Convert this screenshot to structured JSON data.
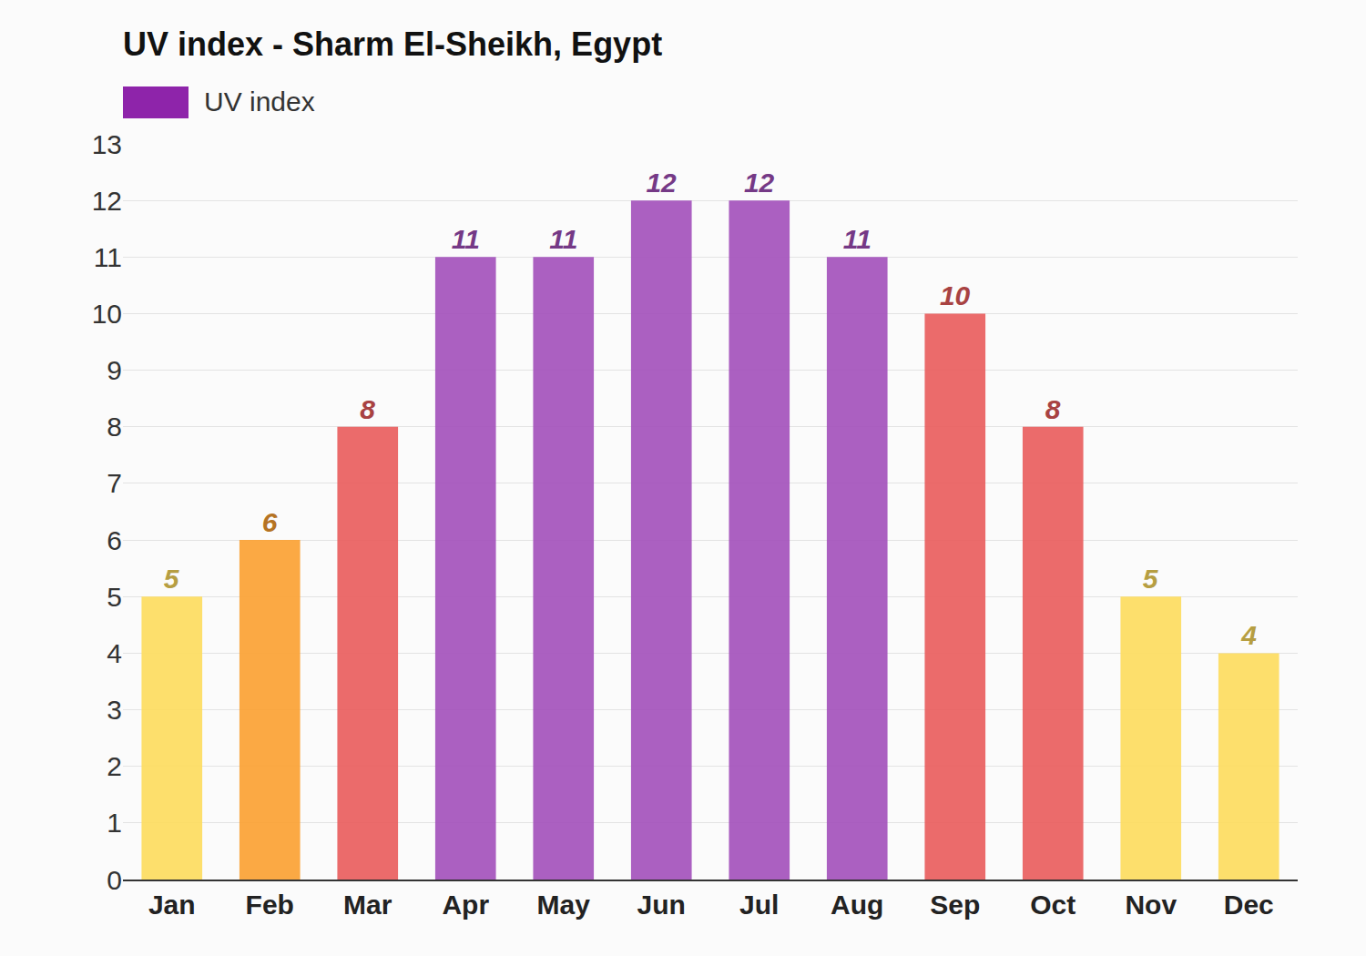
{
  "chart_data": {
    "type": "bar",
    "title": "UV index - Sharm El-Sheikh, Egypt",
    "categories": [
      "Jan",
      "Feb",
      "Mar",
      "Apr",
      "May",
      "Jun",
      "Jul",
      "Aug",
      "Sep",
      "Oct",
      "Nov",
      "Dec"
    ],
    "series": [
      {
        "name": "UV index",
        "color": "#8e24aa",
        "values": [
          5,
          6,
          8,
          11,
          11,
          12,
          12,
          11,
          10,
          8,
          5,
          4
        ],
        "colors": [
          "#fddc5c",
          "#fba030",
          "#e95b5b",
          "#a24fba",
          "#a24fba",
          "#a24fba",
          "#a24fba",
          "#a24fba",
          "#e95b5b",
          "#e95b5b",
          "#fddc5c",
          "#fddc5c"
        ]
      }
    ],
    "ylim": [
      0,
      13
    ],
    "yticks": [
      0,
      1,
      2,
      3,
      4,
      5,
      6,
      7,
      8,
      9,
      10,
      11,
      12,
      13
    ],
    "grid": true,
    "legend": "top-left",
    "data_labels": true
  }
}
